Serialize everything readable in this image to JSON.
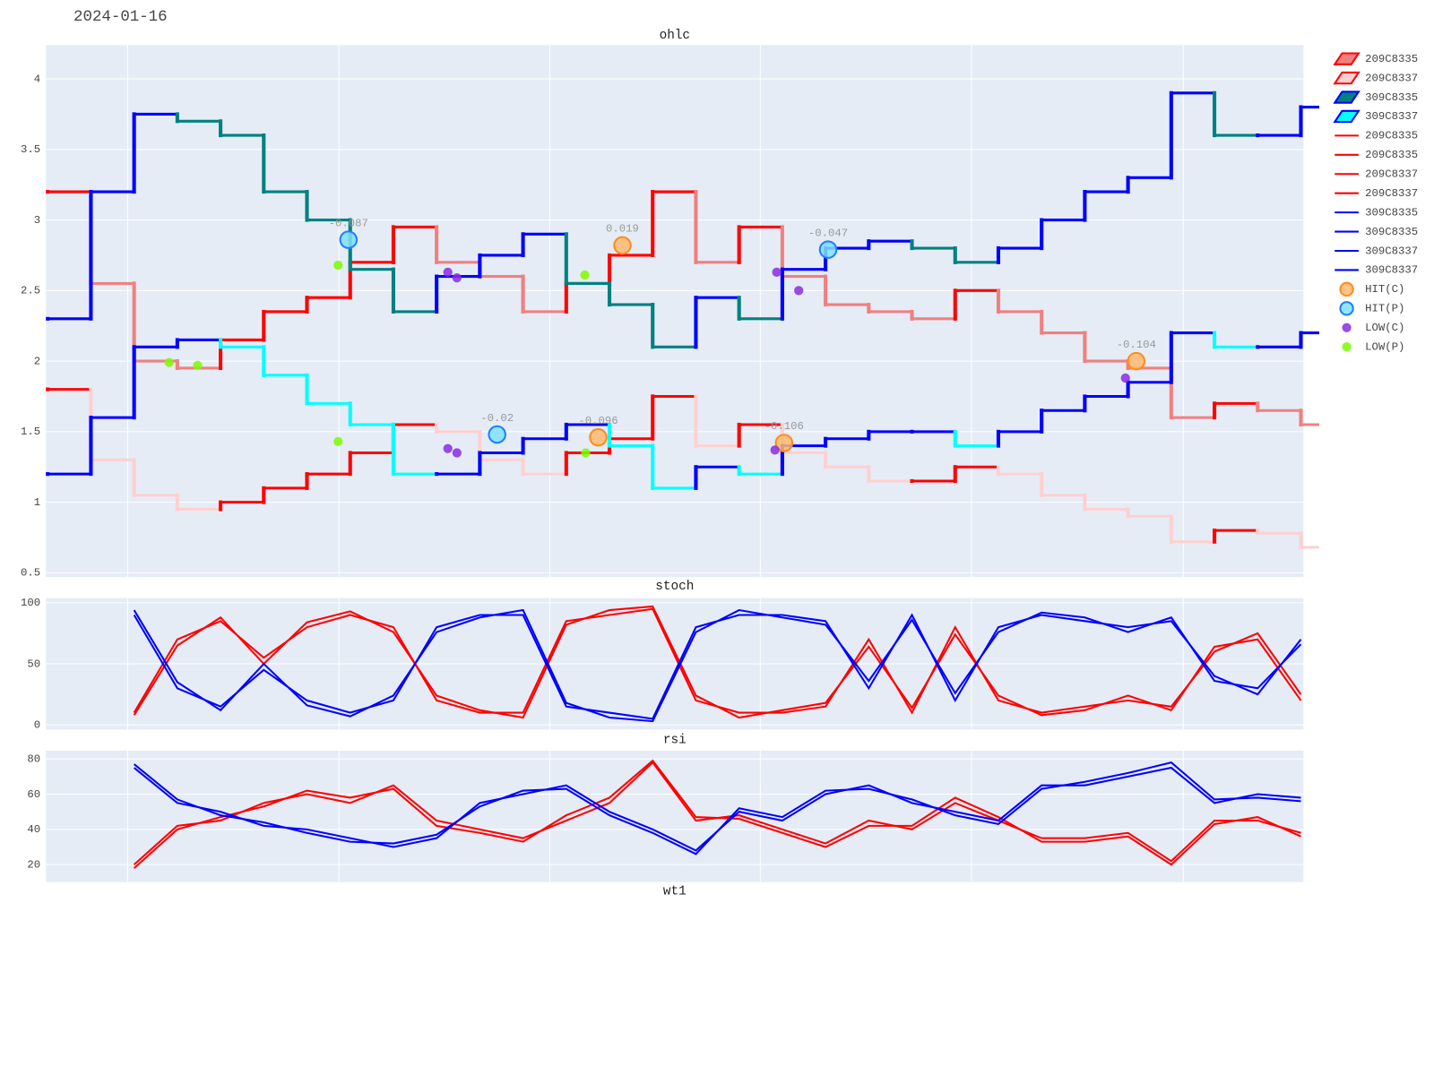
{
  "date": "2024-01-16",
  "chart_data": [
    {
      "type": "ohlc",
      "title": "ohlc",
      "x": [
        0,
        1,
        2,
        3,
        4,
        5,
        6,
        7,
        8,
        9,
        10,
        11,
        12,
        13,
        14,
        15,
        16,
        17,
        18,
        19,
        20,
        21,
        22,
        23,
        24,
        25,
        26,
        27,
        28,
        29
      ],
      "xlim": [
        -0.04,
        29.06
      ],
      "xgrid": [
        1.85,
        6.74,
        11.62,
        16.49,
        21.38,
        26.28
      ],
      "ylim": [
        0.47,
        4.24
      ],
      "yticks": [
        0.5,
        1,
        1.5,
        2,
        2.5,
        3,
        3.5,
        4
      ],
      "grid": true,
      "series": [
        {
          "name": "209C8335",
          "increasing_color": "#ff0000",
          "decreasing_color": "#f08080",
          "values": [
            3.2,
            2.55,
            2.0,
            1.95,
            2.15,
            2.35,
            2.45,
            2.7,
            2.95,
            2.7,
            2.6,
            2.35,
            2.55,
            2.75,
            3.2,
            2.7,
            2.95,
            2.6,
            2.4,
            2.35,
            2.3,
            2.5,
            2.35,
            2.2,
            2.0,
            1.95,
            1.6,
            1.7,
            1.65,
            1.55
          ]
        },
        {
          "name": "209C8337",
          "increasing_color": "#ff0000",
          "decreasing_color": "#ffd0d0",
          "values": [
            1.8,
            1.3,
            1.05,
            0.95,
            1.0,
            1.1,
            1.2,
            1.35,
            1.55,
            1.5,
            1.3,
            1.2,
            1.35,
            1.45,
            1.75,
            1.4,
            1.55,
            1.35,
            1.25,
            1.15,
            1.15,
            1.25,
            1.2,
            1.05,
            0.95,
            0.9,
            0.72,
            0.8,
            0.78,
            0.68
          ]
        },
        {
          "name": "309C8335",
          "increasing_color": "#0000ff",
          "decreasing_color": "#008080",
          "values": [
            2.3,
            3.2,
            3.75,
            3.7,
            3.6,
            3.2,
            3.0,
            2.65,
            2.35,
            2.6,
            2.75,
            2.9,
            2.55,
            2.4,
            2.1,
            2.45,
            2.3,
            2.65,
            2.8,
            2.85,
            2.8,
            2.7,
            2.8,
            3.0,
            3.2,
            3.3,
            3.9,
            3.6,
            3.6,
            3.8
          ]
        },
        {
          "name": "309C8337",
          "increasing_color": "#0000ff",
          "decreasing_color": "#00ffff",
          "values": [
            1.2,
            1.6,
            2.1,
            2.15,
            2.1,
            1.9,
            1.7,
            1.55,
            1.2,
            1.2,
            1.35,
            1.45,
            1.55,
            1.4,
            1.1,
            1.25,
            1.2,
            1.4,
            1.45,
            1.5,
            1.5,
            1.4,
            1.5,
            1.65,
            1.75,
            1.85,
            2.2,
            2.1,
            2.1,
            2.2
          ]
        }
      ],
      "markers": [
        {
          "name": "HIT(C)",
          "color": "#ffb870",
          "line": "#ff8c1a",
          "size": 9,
          "x": [
            13.3,
            12.74,
            17.04,
            25.19
          ],
          "y": [
            2.82,
            1.46,
            1.42,
            2.0
          ],
          "text": [
            "0.019",
            "-0.096",
            "-0.106",
            "-0.104"
          ]
        },
        {
          "name": "HIT(P)",
          "color": "#80e0ff",
          "line": "#1e7fff",
          "size": 9,
          "x": [
            6.96,
            18.06,
            10.4
          ],
          "y": [
            2.86,
            2.79,
            1.48
          ],
          "text": [
            "-0.087",
            "-0.047",
            "-0.02"
          ]
        },
        {
          "name": "LOW(C)",
          "color": "#8a2be2",
          "size": 5,
          "x": [
            9.26,
            9.47,
            16.87,
            17.38,
            24.94,
            9.26,
            9.47,
            16.83
          ],
          "y": [
            2.63,
            2.59,
            2.63,
            2.5,
            1.88,
            1.38,
            1.35,
            1.37
          ]
        },
        {
          "name": "LOW(P)",
          "color": "#7cfc00",
          "size": 5,
          "x": [
            6.72,
            2.81,
            3.47,
            12.43,
            6.72,
            12.45
          ],
          "y": [
            2.68,
            1.99,
            1.97,
            2.61,
            1.43,
            1.35
          ]
        }
      ]
    },
    {
      "type": "line",
      "title": "stoch",
      "x": [
        2,
        3,
        4,
        5,
        6,
        7,
        8,
        9,
        10,
        11,
        12,
        13,
        14,
        15,
        16,
        17,
        18,
        19,
        20,
        21,
        22,
        23,
        24,
        25,
        26,
        27,
        28,
        29
      ],
      "xlim": [
        -0.04,
        29.06
      ],
      "xgrid": [
        1.85,
        6.74,
        11.62,
        16.49,
        21.38,
        26.28
      ],
      "ylim": [
        -3.8,
        103.8
      ],
      "yticks": [
        0,
        50,
        100
      ],
      "grid": true,
      "series": [
        {
          "name": "209C8335",
          "color": "#ff0000",
          "values": [
            10,
            70,
            85,
            55,
            80,
            90,
            80,
            20,
            10,
            10,
            85,
            90,
            95,
            20,
            10,
            10,
            15,
            70,
            10,
            80,
            20,
            10,
            15,
            20,
            15,
            60,
            75,
            25
          ]
        },
        {
          "name": "209C8337",
          "color": "#ff0000",
          "values": [
            8,
            65,
            88,
            50,
            84,
            93,
            76,
            24,
            12,
            6,
            82,
            94,
            97,
            24,
            6,
            12,
            18,
            64,
            14,
            74,
            24,
            8,
            12,
            24,
            12,
            64,
            70,
            20
          ]
        },
        {
          "name": "309C8335",
          "color": "#0000ff",
          "values": [
            90,
            30,
            15,
            45,
            20,
            10,
            20,
            80,
            90,
            90,
            15,
            10,
            5,
            80,
            90,
            90,
            85,
            30,
            90,
            20,
            80,
            90,
            85,
            80,
            85,
            40,
            25,
            70
          ]
        },
        {
          "name": "309C8337",
          "color": "#0000ff",
          "values": [
            94,
            35,
            12,
            50,
            16,
            7,
            24,
            76,
            88,
            94,
            18,
            6,
            3,
            76,
            94,
            88,
            82,
            36,
            86,
            26,
            76,
            92,
            88,
            76,
            88,
            36,
            30,
            66
          ]
        }
      ]
    },
    {
      "type": "line",
      "title": "rsi",
      "x": [
        2,
        3,
        4,
        5,
        6,
        7,
        8,
        9,
        10,
        11,
        12,
        13,
        14,
        15,
        16,
        17,
        18,
        19,
        20,
        21,
        22,
        23,
        24,
        25,
        26,
        27,
        28,
        29
      ],
      "xlim": [
        -0.04,
        29.06
      ],
      "xgrid": [
        1.85,
        6.74,
        11.62,
        16.49,
        21.38,
        26.28
      ],
      "ylim": [
        10.1,
        84.7
      ],
      "yticks": [
        20,
        40,
        60,
        80
      ],
      "grid": true,
      "series": [
        {
          "name": "209C8335",
          "color": "#ff0000",
          "values": [
            20,
            42,
            45,
            55,
            60,
            55,
            65,
            45,
            40,
            35,
            45,
            55,
            78,
            45,
            48,
            40,
            32,
            45,
            40,
            55,
            45,
            35,
            35,
            38,
            22,
            45,
            45,
            38
          ]
        },
        {
          "name": "209C8337",
          "color": "#ff0000",
          "values": [
            18,
            40,
            47,
            53,
            62,
            58,
            63,
            42,
            38,
            33,
            48,
            58,
            79,
            47,
            46,
            38,
            30,
            42,
            42,
            58,
            47,
            33,
            33,
            36,
            20,
            43,
            47,
            36
          ]
        },
        {
          "name": "309C8335",
          "color": "#0000ff",
          "values": [
            75,
            55,
            50,
            42,
            40,
            35,
            30,
            35,
            55,
            60,
            65,
            50,
            40,
            28,
            50,
            45,
            60,
            65,
            55,
            50,
            45,
            65,
            65,
            70,
            75,
            55,
            60,
            58
          ]
        },
        {
          "name": "309C8337",
          "color": "#0000ff",
          "values": [
            77,
            57,
            48,
            44,
            38,
            33,
            32,
            37,
            53,
            62,
            63,
            48,
            38,
            26,
            52,
            47,
            62,
            63,
            57,
            48,
            43,
            63,
            67,
            72,
            78,
            57,
            58,
            56
          ]
        }
      ]
    },
    {
      "type": "line",
      "title": "wt1"
    }
  ]
}
